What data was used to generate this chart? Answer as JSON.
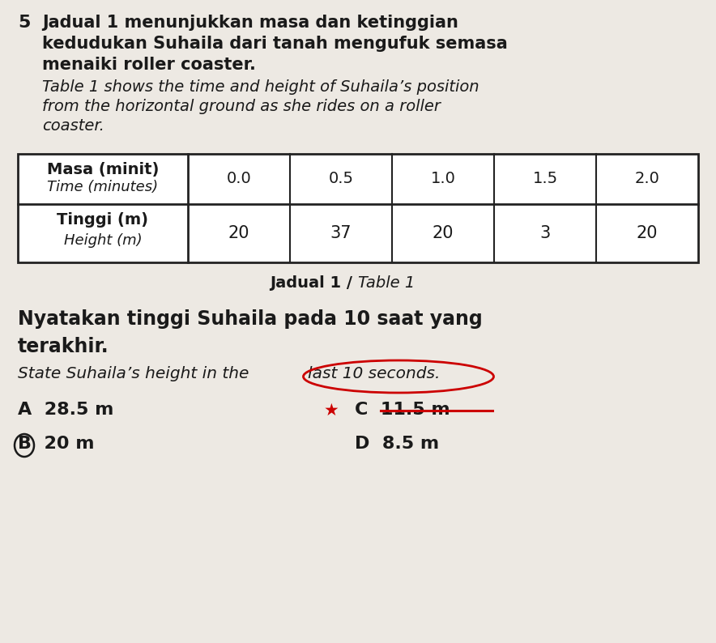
{
  "question_number": "5",
  "malay_lines": [
    "Jadual 1 menunjukkan masa dan ketinggian",
    "kedudukan Suhaila dari tanah mengufuk semasa",
    "menaiki roller coaster."
  ],
  "english_lines": [
    "Table 1 shows the time and height of Suhaila’s position",
    "from the horizontal ground as she rides on a roller",
    "coaster."
  ],
  "col_header_row1_malay": "Masa (minit)",
  "col_header_row1_english": "Time (minutes)",
  "col_header_row2_malay": "Tinggi (m)",
  "col_header_row2_english": "Height (m)",
  "time_values": [
    "0.0",
    "0.5",
    "1.0",
    "1.5",
    "2.0"
  ],
  "height_values": [
    "20",
    "37",
    "20",
    "3",
    "20"
  ],
  "table_caption_bold": "Jadual 1 / ",
  "table_caption_italic": "Table 1",
  "q_malay_lines": [
    "Nyatakan tinggi Suhaila pada 10 saat yang",
    "terakhir."
  ],
  "q_eng_pre": "State Suhaila’s height in the",
  "q_eng_circled": "last 10 seconds.",
  "answer_A": "A  28.5 m",
  "answer_B": "B  20 m",
  "answer_C": "C  11.5 m",
  "answer_D": "D  8.5 m",
  "bg_color": "#ede9e3",
  "text_color": "#1a1a1a",
  "table_border_color": "#222222",
  "star_color": "#cc0000",
  "circle_color": "#cc0000",
  "strike_color": "#cc0000"
}
